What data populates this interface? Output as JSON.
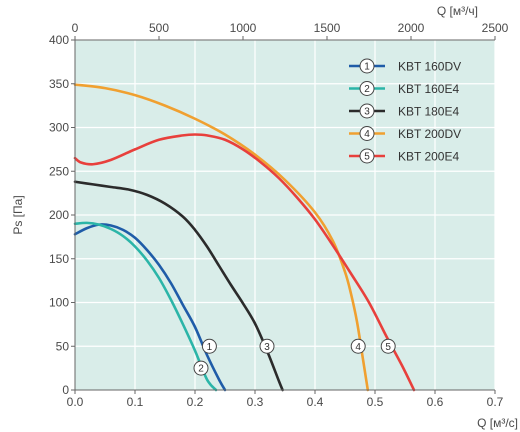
{
  "chart_data": {
    "type": "line",
    "title": "",
    "xlabel": "Q [м³/с]",
    "ylabel": "Ps [Па]",
    "x2label": "Q [м³/ч]",
    "xlim": [
      0,
      0.7
    ],
    "ylim": [
      0,
      400
    ],
    "x2lim": [
      0,
      2500
    ],
    "x_ticks": [
      0.0,
      0.1,
      0.2,
      0.3,
      0.4,
      0.5,
      0.6,
      0.7
    ],
    "x_tick_labels": [
      "0.0",
      "0.1",
      "0.2",
      "0.3",
      "0.4",
      "0.5",
      "0.6",
      "0.7"
    ],
    "y_ticks": [
      0,
      50,
      100,
      150,
      200,
      250,
      300,
      350,
      400
    ],
    "y_tick_labels": [
      "0",
      "50",
      "100",
      "150",
      "200",
      "250",
      "300",
      "350",
      "400"
    ],
    "x2_ticks": [
      0,
      500,
      1000,
      1500,
      2000,
      2500
    ],
    "x2_tick_labels": [
      "0",
      "500",
      "1000",
      "1500",
      "2000",
      "2500"
    ],
    "grid": true,
    "legend_position": "top-right",
    "colors": {
      "background": "#d9ede9",
      "grid": "#ffffff",
      "axis": "#666666"
    },
    "series": [
      {
        "name": "KBT 160DV",
        "marker": "1",
        "color": "#1f5ca8",
        "marker_point": [
          0.224,
          50
        ],
        "x": [
          0,
          0.02,
          0.04,
          0.06,
          0.08,
          0.1,
          0.12,
          0.14,
          0.16,
          0.18,
          0.2,
          0.22,
          0.24,
          0.25
        ],
        "y": [
          178,
          185,
          189,
          188,
          183,
          174,
          160,
          143,
          122,
          97,
          72,
          40,
          12,
          0
        ]
      },
      {
        "name": "KBT 160E4",
        "marker": "2",
        "color": "#2bb5a8",
        "marker_point": [
          0.21,
          25
        ],
        "x": [
          0,
          0.02,
          0.04,
          0.06,
          0.08,
          0.1,
          0.12,
          0.14,
          0.16,
          0.18,
          0.2,
          0.22,
          0.235
        ],
        "y": [
          190,
          191,
          189,
          184,
          176,
          164,
          148,
          128,
          103,
          75,
          45,
          12,
          0
        ]
      },
      {
        "name": "KBT 180E4",
        "marker": "3",
        "color": "#2b2b2b",
        "marker_point": [
          0.32,
          50
        ],
        "x": [
          0,
          0.03,
          0.06,
          0.09,
          0.12,
          0.15,
          0.18,
          0.2,
          0.22,
          0.24,
          0.26,
          0.28,
          0.3,
          0.32,
          0.34,
          0.346
        ],
        "y": [
          238,
          235,
          232,
          229,
          223,
          213,
          198,
          183,
          164,
          142,
          120,
          99,
          76,
          45,
          10,
          0
        ]
      },
      {
        "name": "KBT 200DV",
        "marker": "4",
        "color": "#f0a030",
        "marker_point": [
          0.472,
          50
        ],
        "x": [
          0,
          0.05,
          0.1,
          0.15,
          0.2,
          0.25,
          0.3,
          0.35,
          0.4,
          0.43,
          0.45,
          0.46,
          0.47,
          0.48,
          0.488
        ],
        "y": [
          349,
          345,
          337,
          325,
          310,
          292,
          269,
          240,
          203,
          170,
          135,
          110,
          78,
          35,
          0
        ]
      },
      {
        "name": "KBT 200E4",
        "marker": "5",
        "color": "#e8403c",
        "marker_point": [
          0.522,
          50
        ],
        "x": [
          0,
          0.01,
          0.03,
          0.06,
          0.1,
          0.14,
          0.18,
          0.2,
          0.22,
          0.25,
          0.28,
          0.31,
          0.34,
          0.37,
          0.4,
          0.43,
          0.46,
          0.49,
          0.52,
          0.545,
          0.565
        ],
        "y": [
          265,
          260,
          258,
          263,
          275,
          286,
          291,
          292,
          291,
          286,
          275,
          260,
          242,
          220,
          195,
          165,
          133,
          100,
          60,
          28,
          0
        ]
      }
    ]
  }
}
